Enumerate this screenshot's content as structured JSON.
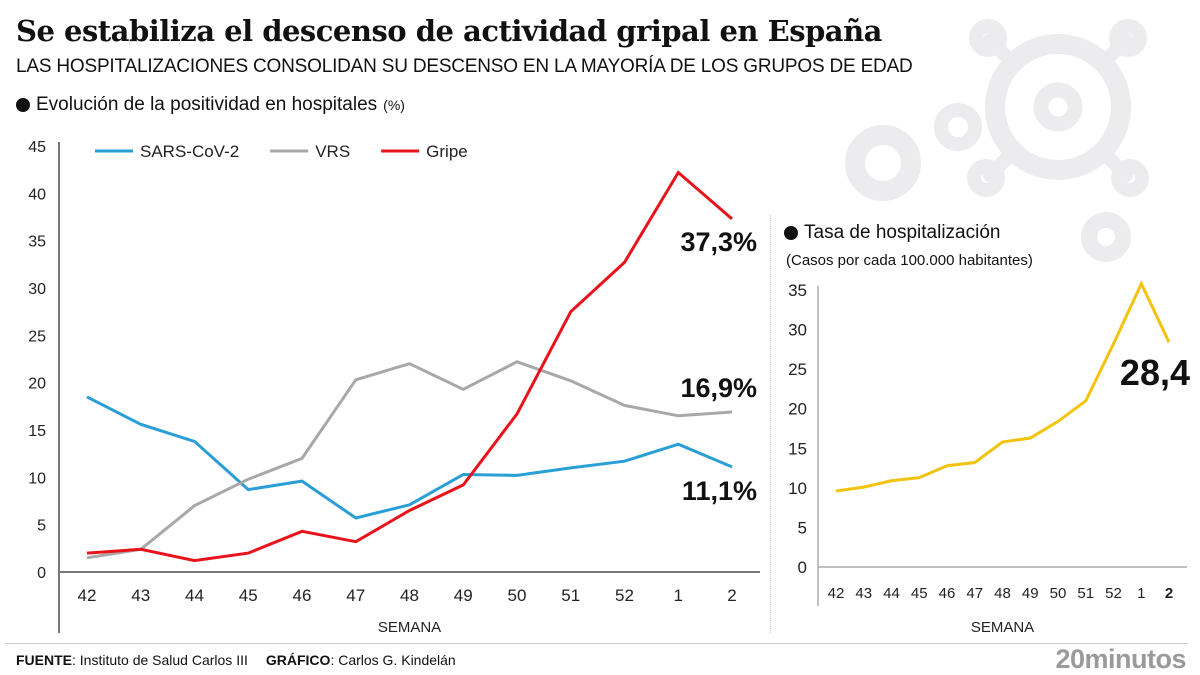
{
  "header": {
    "title": "Se estabiliza el descenso de actividad gripal en España",
    "subtitle": "LAS HOSPITALIZACIONES CONSOLIDAN SU DESCENSO EN LA MAYORÍA DE LOS GRUPOS DE EDAD"
  },
  "left_section": {
    "title": "Evolución de la positividad en hospitales",
    "unit": "(%)"
  },
  "right_section": {
    "title": "Tasa de hospitalización",
    "note": "(Casos por cada 100.000 habitantes)"
  },
  "footer": {
    "source_label": "FUENTE",
    "source_value": ": Instituto de Salud Carlos III",
    "graphic_label": "GRÁFICO",
    "graphic_value": ": Carlos G. Kindelán",
    "logo": "20minutos"
  },
  "decor": {
    "illustration": "virus-icon"
  },
  "chart_data": [
    {
      "type": "line",
      "title": "Evolución de la positividad en hospitales (%)",
      "xlabel": "SEMANA",
      "ylabel": "",
      "categories": [
        "42",
        "43",
        "44",
        "45",
        "46",
        "47",
        "48",
        "49",
        "50",
        "51",
        "52",
        "1",
        "2"
      ],
      "ylim": [
        0,
        45
      ],
      "yticks": [
        0,
        5,
        10,
        15,
        20,
        25,
        30,
        35,
        40,
        45
      ],
      "grid": false,
      "legend": "top-left",
      "series": [
        {
          "name": "SARS-CoV-2",
          "color": "#2a9fd6",
          "values": [
            18.5,
            15.6,
            13.8,
            8.7,
            9.6,
            5.7,
            7.1,
            10.3,
            10.2,
            11.0,
            11.7,
            13.5,
            11.1
          ],
          "end_label": "11,1%"
        },
        {
          "name": "VRS",
          "color": "#a8a8a8",
          "values": [
            1.5,
            2.4,
            7.0,
            9.8,
            12.0,
            20.3,
            22.0,
            19.3,
            22.2,
            20.2,
            17.6,
            16.5,
            16.9
          ],
          "end_label": "16,9%"
        },
        {
          "name": "Gripe",
          "color": "#e8131b",
          "values": [
            2.0,
            2.4,
            1.2,
            2.0,
            4.3,
            3.2,
            6.5,
            9.2,
            16.7,
            27.5,
            32.7,
            42.2,
            37.3
          ],
          "end_label": "37,3%"
        }
      ]
    },
    {
      "type": "line",
      "title": "Tasa de hospitalización",
      "subtitle": "(Casos por cada 100.000 habitantes)",
      "xlabel": "SEMANA",
      "ylabel": "",
      "categories": [
        "42",
        "43",
        "44",
        "45",
        "46",
        "47",
        "48",
        "49",
        "50",
        "51",
        "52",
        "1",
        "2"
      ],
      "highlight_category": "2",
      "ylim": [
        0,
        35
      ],
      "yticks": [
        0,
        5,
        10,
        15,
        20,
        25,
        30,
        35
      ],
      "grid": false,
      "series": [
        {
          "name": "Tasa de hospitalización",
          "color": "#f2c40f",
          "values": [
            9.6,
            10.1,
            10.9,
            11.3,
            12.8,
            13.2,
            15.8,
            16.3,
            18.4,
            21.0,
            28.2,
            35.8,
            28.4
          ],
          "end_label": "28,4"
        }
      ]
    }
  ]
}
